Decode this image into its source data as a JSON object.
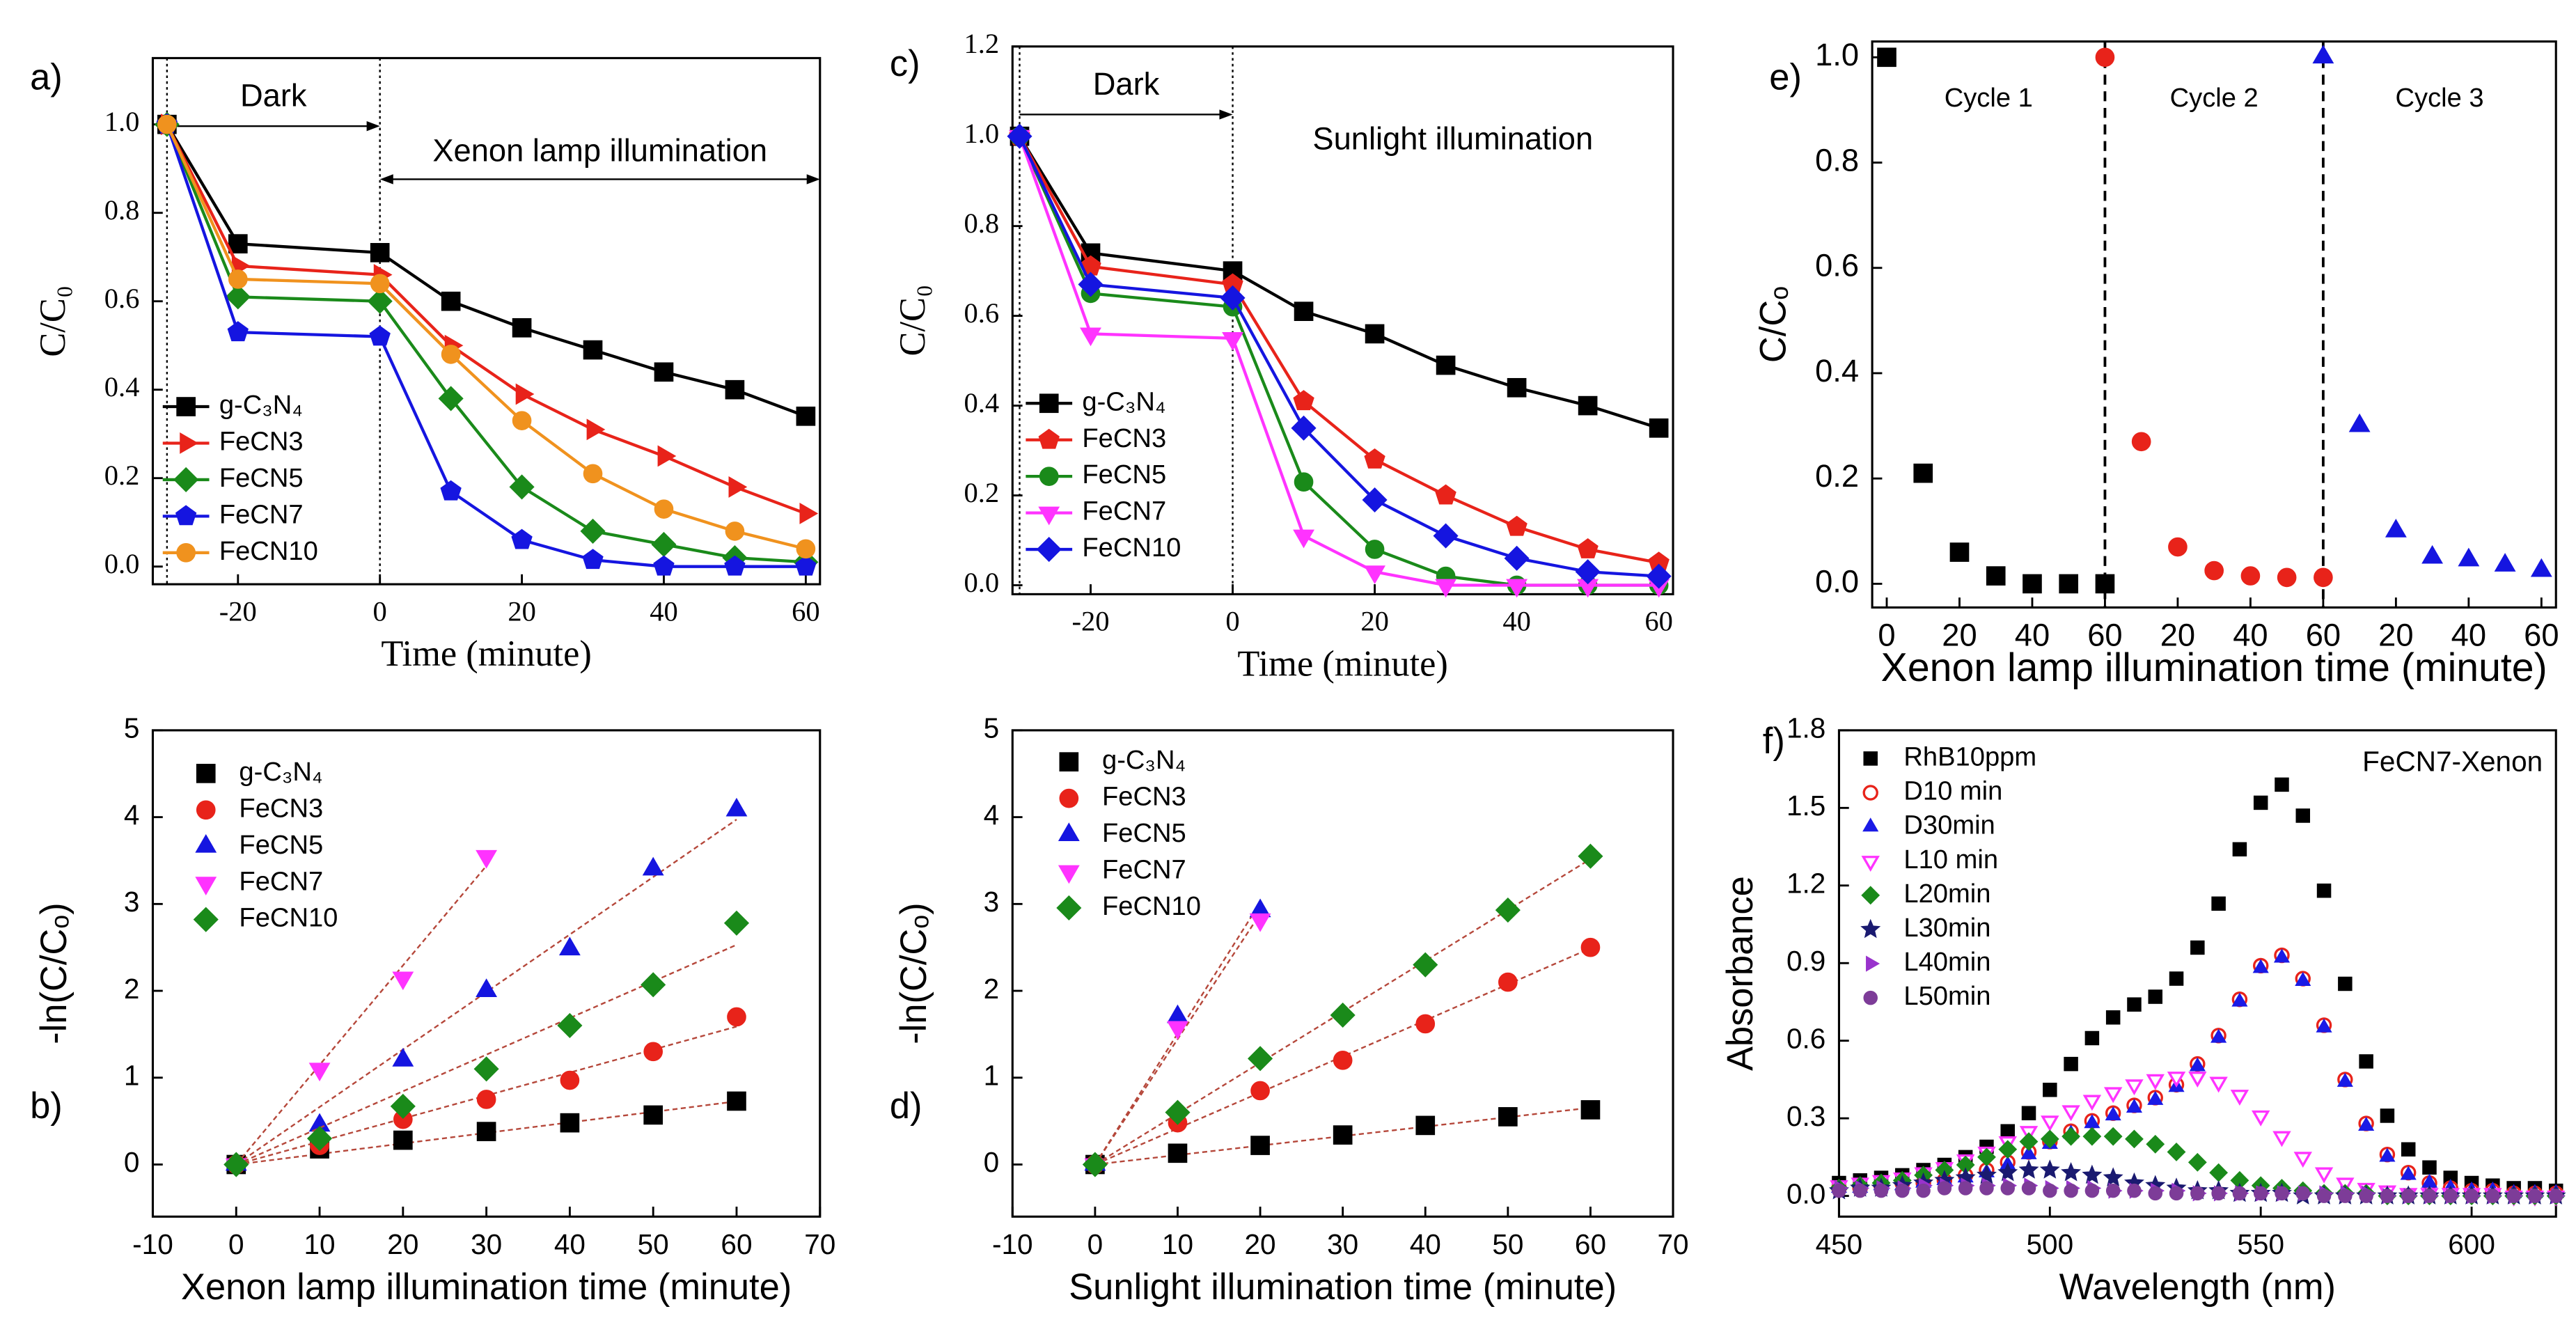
{
  "chart_data": [
    {
      "type": "line",
      "label": "a)",
      "xlabel": "Time (minute)",
      "ylabel": "C/C₀",
      "xlim": [
        -32,
        62
      ],
      "ylim": [
        -0.04,
        1.15
      ],
      "xticks": [
        -20,
        0,
        20,
        40,
        60
      ],
      "yticks": [
        {
          "value": 0.0,
          "label": "0.0"
        },
        0.2,
        0.4,
        0.6,
        0.8,
        {
          "value": 1.0,
          "label": "1.0"
        }
      ],
      "x": [
        -30,
        -20,
        0,
        10,
        20,
        30,
        40,
        50,
        60
      ],
      "annotations": [
        "Dark",
        "Xenon lamp illumination"
      ],
      "series": [
        {
          "name": "g-C₃N₄",
          "color": "#000000",
          "marker": "square",
          "values": [
            1.0,
            0.73,
            0.71,
            0.6,
            0.54,
            0.49,
            0.44,
            0.4,
            0.34
          ]
        },
        {
          "name": "FeCN3",
          "color": "#e8231a",
          "marker": "triangle-right",
          "values": [
            1.0,
            0.68,
            0.66,
            0.5,
            0.39,
            0.31,
            0.25,
            0.18,
            0.12
          ]
        },
        {
          "name": "FeCN5",
          "color": "#1a8a1a",
          "marker": "diamond",
          "values": [
            1.0,
            0.61,
            0.6,
            0.38,
            0.18,
            0.08,
            0.05,
            0.02,
            0.01
          ]
        },
        {
          "name": "FeCN7",
          "color": "#1515e0",
          "marker": "pentagon",
          "values": [
            1.0,
            0.53,
            0.52,
            0.17,
            0.06,
            0.015,
            0.0,
            0.0,
            0.0
          ]
        },
        {
          "name": "FeCN10",
          "color": "#f0921e",
          "marker": "circle",
          "values": [
            1.0,
            0.65,
            0.64,
            0.48,
            0.33,
            0.21,
            0.13,
            0.08,
            0.04
          ]
        }
      ]
    },
    {
      "type": "scatter",
      "label": "b)",
      "xlabel": "Xenon lamp illumination time (minute)",
      "ylabel": "-ln(C/Cₒ)",
      "xlim": [
        -10,
        70
      ],
      "ylim": [
        -0.6,
        5
      ],
      "fit": true,
      "xticks": [
        -10,
        0,
        10,
        20,
        30,
        40,
        50,
        60,
        70
      ],
      "yticks": [
        0,
        1,
        2,
        3,
        4,
        5
      ],
      "series": [
        {
          "name": "g-C₃N₄",
          "color": "#000000",
          "marker": "square",
          "x": [
            0,
            10,
            20,
            30,
            40,
            50,
            60
          ],
          "values": [
            0,
            0.18,
            0.28,
            0.38,
            0.48,
            0.57,
            0.73
          ]
        },
        {
          "name": "FeCN3",
          "color": "#e8231a",
          "marker": "circle",
          "x": [
            0,
            10,
            20,
            30,
            40,
            50,
            60
          ],
          "values": [
            0,
            0.22,
            0.52,
            0.75,
            0.97,
            1.3,
            1.7
          ]
        },
        {
          "name": "FeCN5",
          "color": "#1515e0",
          "marker": "triangle",
          "x": [
            0,
            10,
            20,
            30,
            40,
            50,
            60
          ],
          "values": [
            0,
            0.45,
            1.2,
            2.0,
            2.48,
            3.4,
            4.08
          ]
        },
        {
          "name": "FeCN7",
          "color": "#ff33ff",
          "marker": "triangle-down",
          "x": [
            0,
            10,
            20,
            30
          ],
          "values": [
            0,
            1.1,
            2.15,
            3.55
          ]
        },
        {
          "name": "FeCN10",
          "color": "#1a8a1a",
          "marker": "diamond",
          "x": [
            0,
            10,
            20,
            30,
            40,
            50,
            60
          ],
          "values": [
            0,
            0.3,
            0.67,
            1.1,
            1.6,
            2.07,
            2.78
          ]
        }
      ]
    },
    {
      "type": "line",
      "label": "c)",
      "xlabel": "Time (minute)",
      "ylabel": "C/C₀",
      "xlim": [
        -31,
        62
      ],
      "ylim": [
        -0.02,
        1.2
      ],
      "xticks": [
        -20,
        0,
        20,
        40,
        60
      ],
      "yticks": [
        {
          "value": 0.0,
          "label": "0.0"
        },
        0.2,
        0.4,
        0.6,
        0.8,
        {
          "value": 1.0,
          "label": "1.0"
        },
        1.2
      ],
      "x": [
        -30,
        -20,
        0,
        10,
        20,
        30,
        40,
        50,
        60
      ],
      "annotations": [
        "Dark",
        "Sunlight illumination"
      ],
      "series": [
        {
          "name": "g-C₃N₄",
          "color": "#000000",
          "marker": "square",
          "values": [
            1.0,
            0.74,
            0.7,
            0.61,
            0.56,
            0.49,
            0.44,
            0.4,
            0.35
          ]
        },
        {
          "name": "FeCN3",
          "color": "#e8231a",
          "marker": "pentagon",
          "values": [
            1.0,
            0.71,
            0.67,
            0.41,
            0.28,
            0.2,
            0.13,
            0.08,
            0.05
          ]
        },
        {
          "name": "FeCN5",
          "color": "#1a8a1a",
          "marker": "circle",
          "values": [
            1.0,
            0.65,
            0.62,
            0.23,
            0.08,
            0.02,
            0.0,
            0.0,
            0.0
          ]
        },
        {
          "name": "FeCN7",
          "color": "#ff33ff",
          "marker": "triangle-down",
          "values": [
            1.0,
            0.56,
            0.55,
            0.11,
            0.03,
            0.0,
            0.0,
            0.0,
            0.0
          ]
        },
        {
          "name": "FeCN10",
          "color": "#1515e0",
          "marker": "diamond",
          "values": [
            1.0,
            0.67,
            0.64,
            0.35,
            0.19,
            0.11,
            0.06,
            0.03,
            0.02
          ]
        }
      ]
    },
    {
      "type": "scatter",
      "label": "d)",
      "xlabel": "Sunlight illumination time (minute)",
      "ylabel": "-ln(C/Cₒ)",
      "xlim": [
        -10,
        70
      ],
      "ylim": [
        -0.6,
        5
      ],
      "fit": true,
      "xticks": [
        -10,
        0,
        10,
        20,
        30,
        40,
        50,
        60,
        70
      ],
      "yticks": [
        0,
        1,
        2,
        3,
        4,
        5
      ],
      "series": [
        {
          "name": "g-C₃N₄",
          "color": "#000000",
          "marker": "square",
          "x": [
            0,
            10,
            20,
            30,
            40,
            50,
            60
          ],
          "values": [
            0,
            0.13,
            0.22,
            0.34,
            0.45,
            0.55,
            0.63
          ]
        },
        {
          "name": "FeCN3",
          "color": "#e8231a",
          "marker": "circle",
          "x": [
            0,
            10,
            20,
            30,
            40,
            50,
            60
          ],
          "values": [
            0,
            0.48,
            0.85,
            1.2,
            1.62,
            2.1,
            2.5
          ]
        },
        {
          "name": "FeCN5",
          "color": "#1515e0",
          "marker": "triangle",
          "x": [
            0,
            10,
            20
          ],
          "values": [
            0,
            1.7,
            2.92
          ]
        },
        {
          "name": "FeCN7",
          "color": "#ff33ff",
          "marker": "triangle-down",
          "x": [
            0,
            10,
            20
          ],
          "values": [
            0,
            1.58,
            2.82
          ]
        },
        {
          "name": "FeCN10",
          "color": "#1a8a1a",
          "marker": "diamond",
          "x": [
            0,
            10,
            20,
            30,
            40,
            50,
            60
          ],
          "values": [
            0,
            0.6,
            1.22,
            1.72,
            2.3,
            2.93,
            3.55
          ]
        }
      ]
    },
    {
      "type": "scatter",
      "label": "e)",
      "xlabel": "Xenon lamp illumination time (minute)",
      "ylabel": "C/Cₒ",
      "xlim": [
        -4,
        184
      ],
      "ylim": [
        -0.045,
        1.03
      ],
      "xticks": [
        0,
        20,
        40,
        60,
        {
          "value": 80,
          "label": "20"
        },
        {
          "value": 100,
          "label": "40"
        },
        {
          "value": 120,
          "label": "60"
        },
        {
          "value": 140,
          "label": "20"
        },
        {
          "value": 160,
          "label": "40"
        },
        {
          "value": 180,
          "label": "60"
        }
      ],
      "yticks": [
        {
          "value": 0.0,
          "label": "0.0"
        },
        0.2,
        0.4,
        0.6,
        0.8,
        {
          "value": 1.0,
          "label": "1.0"
        }
      ],
      "annotations": [
        "Cycle 1",
        "Cycle 2",
        "Cycle 3"
      ],
      "series": [
        {
          "color": "#000000",
          "marker": "square",
          "x": [
            0,
            10,
            20,
            30,
            40,
            50,
            60
          ],
          "values": [
            1.0,
            0.21,
            0.06,
            0.015,
            0.0,
            0.0,
            0.0
          ]
        },
        {
          "color": "#e8231a",
          "marker": "circle",
          "x": [
            60,
            70,
            80,
            90,
            100,
            110,
            120
          ],
          "values": [
            1.0,
            0.27,
            0.07,
            0.025,
            0.015,
            0.012,
            0.012
          ]
        },
        {
          "color": "#1515e0",
          "marker": "triangle",
          "x": [
            120,
            130,
            140,
            150,
            160,
            170,
            180
          ],
          "values": [
            1.0,
            0.3,
            0.1,
            0.05,
            0.045,
            0.035,
            0.025
          ]
        }
      ]
    },
    {
      "type": "scatter",
      "label": "f)",
      "xlabel": "Wavelength (nm)",
      "ylabel": "Absorbance",
      "xlim": [
        450,
        620
      ],
      "ylim": [
        -0.08,
        1.8
      ],
      "xticks": [
        450,
        500,
        550,
        600
      ],
      "yticks": [
        {
          "value": 0.0,
          "label": "0.0"
        },
        0.3,
        0.6,
        0.9,
        1.2,
        1.5,
        1.8
      ],
      "annotations": [
        "FeCN7-Xenon"
      ],
      "x": [
        450,
        455,
        460,
        465,
        470,
        475,
        480,
        485,
        490,
        495,
        500,
        505,
        510,
        515,
        520,
        525,
        530,
        535,
        540,
        545,
        550,
        555,
        560,
        565,
        570,
        575,
        580,
        585,
        590,
        595,
        600,
        605,
        610,
        615,
        620
      ],
      "series": [
        {
          "name": "RhB10ppm",
          "color": "#000000",
          "marker": "square",
          "values": [
            0.05,
            0.06,
            0.07,
            0.08,
            0.1,
            0.12,
            0.15,
            0.19,
            0.25,
            0.32,
            0.41,
            0.51,
            0.61,
            0.69,
            0.74,
            0.77,
            0.84,
            0.96,
            1.13,
            1.34,
            1.52,
            1.59,
            1.47,
            1.18,
            0.82,
            0.52,
            0.31,
            0.18,
            0.11,
            0.07,
            0.05,
            0.04,
            0.03,
            0.03,
            0.02
          ]
        },
        {
          "name": "D10 min",
          "color": "#e8231a",
          "marker": "circle-open",
          "values": [
            0.03,
            0.03,
            0.04,
            0.05,
            0.05,
            0.06,
            0.08,
            0.1,
            0.13,
            0.17,
            0.21,
            0.25,
            0.29,
            0.32,
            0.35,
            0.38,
            0.43,
            0.51,
            0.62,
            0.76,
            0.89,
            0.93,
            0.84,
            0.66,
            0.45,
            0.28,
            0.16,
            0.09,
            0.05,
            0.03,
            0.02,
            0.02,
            0.01,
            0.01,
            0.01
          ]
        },
        {
          "name": "D30min",
          "color": "#1a1ae6",
          "marker": "triangle",
          "values": [
            0.03,
            0.03,
            0.04,
            0.04,
            0.05,
            0.06,
            0.07,
            0.09,
            0.12,
            0.16,
            0.2,
            0.24,
            0.28,
            0.31,
            0.34,
            0.37,
            0.42,
            0.5,
            0.61,
            0.75,
            0.88,
            0.92,
            0.83,
            0.65,
            0.44,
            0.27,
            0.15,
            0.08,
            0.05,
            0.03,
            0.02,
            0.02,
            0.01,
            0.01,
            0.01
          ]
        },
        {
          "name": "L10 min",
          "color": "#ff33ff",
          "marker": "triangle-down-open",
          "values": [
            0.04,
            0.05,
            0.06,
            0.07,
            0.09,
            0.11,
            0.14,
            0.17,
            0.21,
            0.25,
            0.29,
            0.33,
            0.37,
            0.4,
            0.43,
            0.45,
            0.46,
            0.46,
            0.44,
            0.39,
            0.31,
            0.23,
            0.15,
            0.09,
            0.05,
            0.03,
            0.02,
            0.01,
            0.01,
            0.01,
            0.01,
            0.01,
            0,
            0,
            0
          ]
        },
        {
          "name": "L20min",
          "color": "#1a8a1a",
          "marker": "diamond",
          "values": [
            0.03,
            0.04,
            0.05,
            0.06,
            0.08,
            0.1,
            0.12,
            0.15,
            0.18,
            0.21,
            0.22,
            0.23,
            0.23,
            0.23,
            0.22,
            0.2,
            0.17,
            0.13,
            0.09,
            0.06,
            0.04,
            0.03,
            0.02,
            0.01,
            0.01,
            0.01,
            0,
            0,
            0,
            0,
            0,
            0,
            0,
            0,
            0
          ]
        },
        {
          "name": "L30min",
          "color": "#1a1a70",
          "marker": "star",
          "values": [
            0.02,
            0.03,
            0.03,
            0.04,
            0.05,
            0.06,
            0.07,
            0.08,
            0.09,
            0.1,
            0.1,
            0.09,
            0.08,
            0.07,
            0.05,
            0.04,
            0.03,
            0.02,
            0.02,
            0.01,
            0.01,
            0.01,
            0,
            0,
            0,
            0,
            0,
            0,
            0,
            0,
            0,
            0,
            0,
            0,
            0
          ]
        },
        {
          "name": "L40min",
          "color": "#9933cc",
          "marker": "triangle-right",
          "values": [
            0.03,
            0.03,
            0.03,
            0.03,
            0.04,
            0.04,
            0.04,
            0.04,
            0.04,
            0.04,
            0.03,
            0.03,
            0.03,
            0.02,
            0.02,
            0.02,
            0.02,
            0.01,
            0.01,
            0.01,
            0.01,
            0.01,
            0.01,
            0.01,
            0.01,
            0.01,
            0,
            0,
            0,
            0,
            0,
            0,
            0,
            0,
            0
          ]
        },
        {
          "name": "L50min",
          "color": "#7d3c98",
          "marker": "circle",
          "values": [
            0.02,
            0.02,
            0.02,
            0.02,
            0.02,
            0.03,
            0.03,
            0.03,
            0.03,
            0.03,
            0.02,
            0.02,
            0.02,
            0.02,
            0.02,
            0.01,
            0.01,
            0.01,
            0.01,
            0.01,
            0.01,
            0.01,
            0.01,
            0,
            0,
            0,
            0,
            0,
            0,
            0,
            0,
            0,
            0,
            0,
            0
          ]
        }
      ]
    }
  ]
}
